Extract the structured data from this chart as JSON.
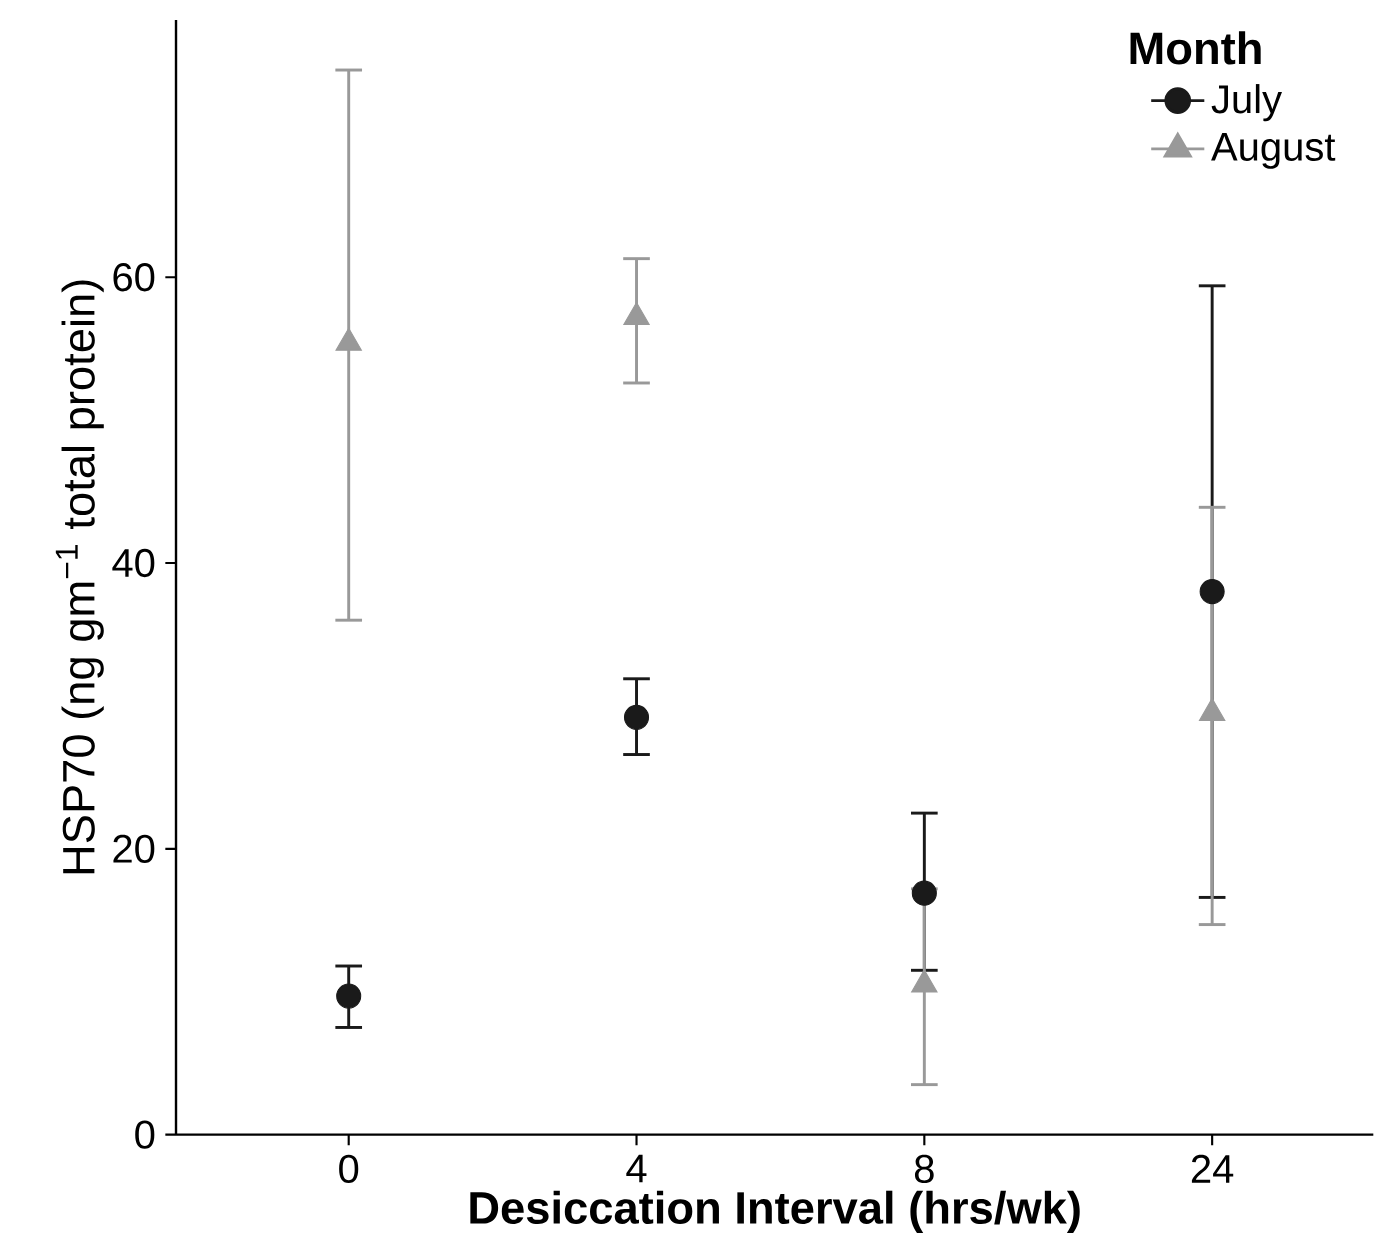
{
  "chart_data": {
    "type": "scatter",
    "xlabel": "Desiccation Interval (hrs/wk)",
    "ylabel": "HSP70 (ng gm$^{−1}$ total protein)",
    "legend_title": "Month",
    "categories": [
      "0",
      "4",
      "8",
      "24"
    ],
    "series": [
      {
        "name": "July",
        "color": "#1a1a1a",
        "marker": "circle",
        "values": [
          9.7,
          29.2,
          16.9,
          38.0
        ],
        "errors": [
          [
            7.5,
            11.8
          ],
          [
            26.6,
            31.9
          ],
          [
            11.5,
            22.5
          ],
          [
            16.6,
            59.4
          ]
        ]
      },
      {
        "name": "August",
        "color": "#999999",
        "marker": "triangle",
        "values": [
          55.4,
          57.2,
          10.5,
          29.5
        ],
        "errors": [
          [
            36.0,
            74.5
          ],
          [
            52.6,
            61.3
          ],
          [
            3.5,
            17.2
          ],
          [
            14.7,
            43.9
          ]
        ]
      }
    ],
    "ylim": [
      0,
      78
    ],
    "yticks": [
      0,
      20,
      40,
      60
    ],
    "grid": false,
    "legend": "top right"
  }
}
